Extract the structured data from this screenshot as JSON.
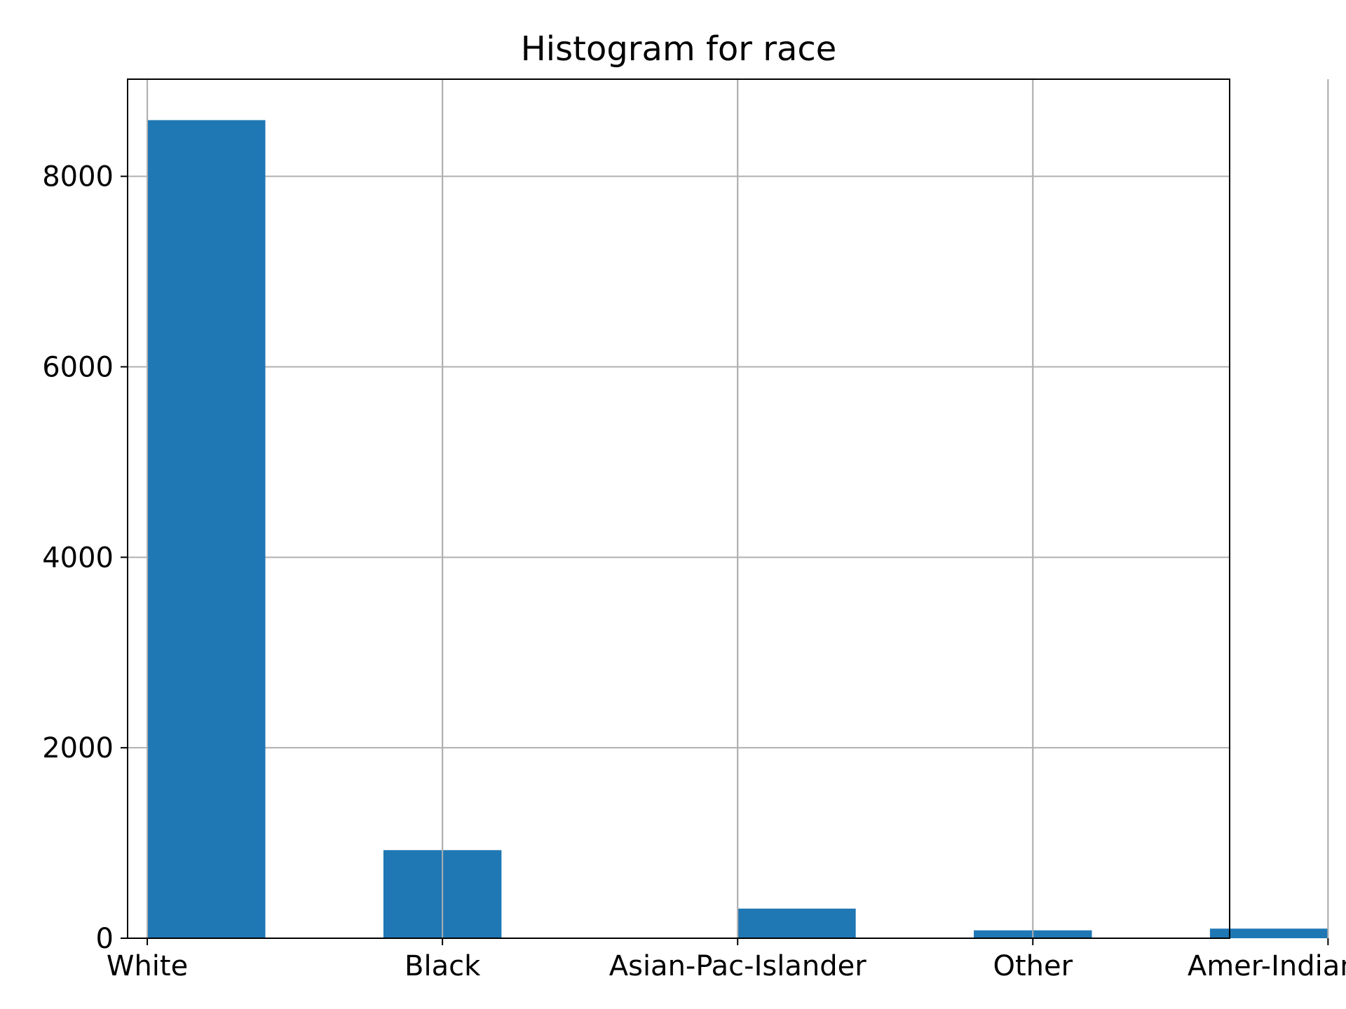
{
  "chart_data": {
    "type": "bar",
    "title": "Histogram for race",
    "xlabel": "",
    "ylabel": "",
    "x": [
      0,
      1.2,
      2.4,
      3.6,
      4.8,
      6.0,
      7.2,
      8.4,
      9.6,
      10.8
    ],
    "bar_width": 1.2,
    "values": [
      8590,
      0,
      925,
      0,
      0,
      311,
      0,
      83,
      0,
      101
    ],
    "xlim": [
      -0.2,
      11.0
    ],
    "ylim": [
      0,
      9020
    ],
    "xticks": [
      0,
      3,
      6,
      9,
      12
    ],
    "xtick_labels": [
      "White",
      "Black",
      "Asian-Pac-Islander",
      "Other",
      "Amer-Indian-Eskimo"
    ],
    "yticks": [
      0,
      2000,
      4000,
      6000,
      8000
    ],
    "ytick_labels": [
      "0",
      "2000",
      "4000",
      "6000",
      "8000"
    ],
    "grid": true,
    "colors": {
      "bar": "#1f77b4",
      "grid": "#b0b0b0",
      "axis": "#000000"
    }
  }
}
